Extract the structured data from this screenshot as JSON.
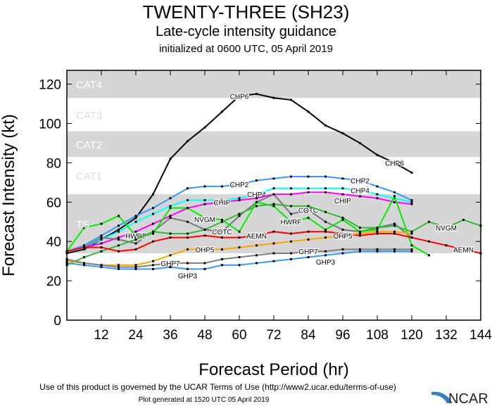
{
  "header": {
    "title": "TWENTY-THREE (SH23)",
    "subtitle": "Late-cycle intensity guidance",
    "initialized": "initialized at 0600 UTC, 05 April 2019"
  },
  "footer": {
    "terms": "Use of this product is governed by the UCAR Terms of Use (http://www2.ucar.edu/terms-of-use)",
    "generated": "Plot generated at 1520 UTC   05 April 2019",
    "logo": "NCAR"
  },
  "chart_data": {
    "type": "line",
    "xlabel": "Forecast Period (hr)",
    "ylabel": "Forecast Intensity (kt)",
    "xlim": [
      0,
      144
    ],
    "ylim": [
      0,
      127
    ],
    "xticks": [
      12,
      24,
      36,
      48,
      60,
      72,
      84,
      96,
      108,
      120,
      132,
      144
    ],
    "yticks": [
      0,
      20,
      40,
      60,
      80,
      100,
      120
    ],
    "grid": false,
    "categories_bands": [
      {
        "name": "TS",
        "min": 34,
        "max": 64,
        "shaded": true
      },
      {
        "name": "CAT1",
        "min": 64,
        "max": 83,
        "shaded": false
      },
      {
        "name": "CAT2",
        "min": 83,
        "max": 96,
        "shaded": true
      },
      {
        "name": "CAT3",
        "min": 96,
        "max": 113,
        "shaded": false
      },
      {
        "name": "CAT4",
        "min": 113,
        "max": 127,
        "shaded": true
      }
    ],
    "x_step_hours": 6,
    "series": [
      {
        "name": "CHP6",
        "color": "#000000",
        "values": [
          34,
          36,
          41,
          46,
          52,
          64,
          82,
          91,
          98,
          106,
          114,
          115,
          113,
          112,
          106,
          99,
          95,
          90,
          84,
          80,
          75
        ]
      },
      {
        "name": "CHP2",
        "color": "#3399ff",
        "values": [
          35,
          38,
          43,
          48,
          53,
          57,
          62,
          67,
          68,
          68,
          69,
          71,
          72,
          73,
          73,
          73,
          72,
          71,
          68,
          65,
          61
        ]
      },
      {
        "name": "CHP4",
        "color": "#00ffff",
        "values": [
          35,
          37,
          41,
          45,
          50,
          54,
          58,
          61,
          61,
          61,
          62,
          64,
          67,
          67,
          67,
          67,
          67,
          66,
          64,
          62,
          60
        ]
      },
      {
        "name": "CHIP",
        "color": "#ff00ff",
        "values": [
          35,
          37,
          39,
          42,
          45,
          49,
          53,
          57,
          59,
          60,
          61,
          62,
          64,
          64,
          65,
          65,
          64,
          63,
          62,
          60,
          59
        ]
      },
      {
        "name": "COTC",
        "color": "#777777",
        "values": [
          35,
          37,
          42,
          41,
          39,
          45,
          52,
          50,
          46,
          45,
          53,
          60,
          64,
          54,
          56,
          50,
          46,
          45,
          47,
          49,
          42
        ]
      },
      {
        "name": "HWRF",
        "color": "#00ee00",
        "values": [
          35,
          47,
          49,
          53,
          43,
          44,
          57,
          57,
          52,
          51,
          45,
          60,
          58,
          50,
          52,
          46,
          51,
          45,
          46,
          63,
          38,
          33
        ]
      },
      {
        "name": "NVGM",
        "color": "#33bb33",
        "values": [
          28,
          32,
          35,
          38,
          41,
          45,
          44,
          44,
          46,
          50,
          54,
          58,
          59,
          58,
          58,
          55,
          52,
          47,
          47,
          48,
          45,
          50,
          47,
          51,
          48
        ]
      },
      {
        "name": "AEMN",
        "color": "#ff0000",
        "values": [
          35,
          37,
          37,
          35,
          36,
          40,
          42,
          42,
          43,
          42,
          42,
          43,
          45,
          44,
          45,
          45,
          44,
          43,
          44,
          44,
          42,
          40,
          38,
          36,
          34
        ]
      },
      {
        "name": "OHP5",
        "color": "#ffa500",
        "values": [
          30,
          29,
          28,
          28,
          28,
          30,
          33,
          36,
          36,
          36,
          37,
          38,
          39,
          40,
          41,
          42,
          43,
          44,
          45,
          45,
          44
        ]
      },
      {
        "name": "GHP7",
        "color": "#808080",
        "values": [
          31,
          29,
          28,
          27,
          27,
          28,
          29,
          29,
          29,
          31,
          32,
          33,
          34,
          34,
          35,
          35,
          36,
          36,
          36,
          36,
          36
        ]
      },
      {
        "name": "GHP3",
        "color": "#3399ff",
        "values": [
          29,
          28,
          27,
          26,
          26,
          26,
          27,
          26,
          26,
          28,
          28,
          29,
          30,
          31,
          32,
          33,
          34,
          35,
          35,
          35,
          35
        ]
      }
    ]
  }
}
